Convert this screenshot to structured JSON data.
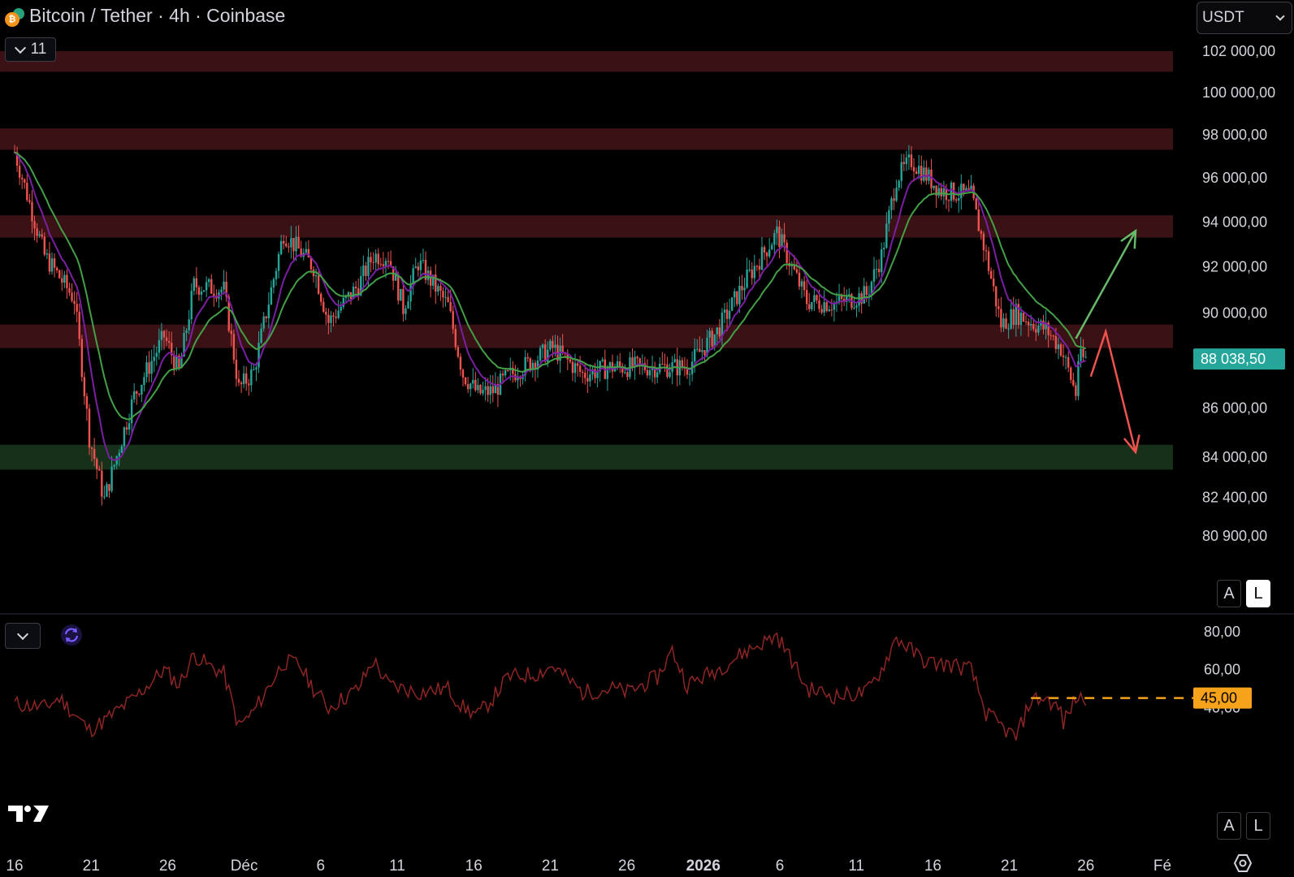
{
  "header": {
    "title": "Bitcoin / Tether · 4h · Coinbase",
    "indicator_count": "11",
    "currency": "USDT"
  },
  "price_axis": {
    "ticks": [
      "102 000,00",
      "100 000,00",
      "98 000,00",
      "96 000,00",
      "94 000,00",
      "92 000,00",
      "90 000,00",
      "86 000,00",
      "84 000,00",
      "82 400,00",
      "80 900,00"
    ],
    "current_price_label": "88 038,50",
    "current_price": 88038.5
  },
  "rsi_axis": {
    "ticks": [
      "80,00",
      "60,00",
      "40,00"
    ],
    "marker_label": "45,00",
    "marker_value": 45
  },
  "time_axis": {
    "labels": [
      "16",
      "21",
      "26",
      "Déc",
      "6",
      "11",
      "16",
      "21",
      "26",
      "2026",
      "6",
      "11",
      "16",
      "21",
      "26",
      "Fé"
    ]
  },
  "scale_buttons": {
    "auto": "A",
    "log": "L"
  },
  "colors": {
    "up": "#26a69a",
    "down": "#ef5350",
    "ema_fast": "#7b1fa2",
    "ema_slow": "#43a047",
    "resistance_zone": "#3a1216",
    "support_zone": "#17301a",
    "rsi": "#8e2525",
    "price_tag": "#26a69a",
    "rsi_tag": "#f7a21b"
  },
  "chart_data": [
    {
      "type": "candlestick",
      "title": "Bitcoin / Tether · 4h · Coinbase",
      "ylim": [
        80000,
        103000
      ],
      "x_range": [
        "2025-11-16",
        "2026-02-01"
      ],
      "price_path": [
        [
          "2025-11-16",
          97200
        ],
        [
          "2025-11-18",
          92500
        ],
        [
          "2025-11-20",
          90600
        ],
        [
          "2025-11-21",
          84800
        ],
        [
          "2025-11-22",
          82300
        ],
        [
          "2025-11-24",
          86500
        ],
        [
          "2025-11-26",
          89000
        ],
        [
          "2025-11-27",
          87500
        ],
        [
          "2025-11-28",
          91200
        ],
        [
          "2025-11-30",
          91000
        ],
        [
          "2025-12-01",
          86800
        ],
        [
          "2025-12-02",
          87500
        ],
        [
          "2025-12-04",
          93500
        ],
        [
          "2025-12-06",
          92000
        ],
        [
          "2025-12-07",
          89600
        ],
        [
          "2025-12-09",
          91200
        ],
        [
          "2025-12-10",
          92500
        ],
        [
          "2025-12-11",
          92500
        ],
        [
          "2025-12-12",
          90200
        ],
        [
          "2025-12-13",
          92200
        ],
        [
          "2025-12-15",
          90300
        ],
        [
          "2025-12-16",
          87400
        ],
        [
          "2025-12-17",
          86600
        ],
        [
          "2025-12-18",
          86700
        ],
        [
          "2025-12-19",
          87300
        ],
        [
          "2025-12-22",
          88500
        ],
        [
          "2025-12-24",
          87400
        ],
        [
          "2025-12-26",
          87700
        ],
        [
          "2025-12-29",
          87700
        ],
        [
          "2025-12-31",
          87700
        ],
        [
          "2026-01-02",
          89200
        ],
        [
          "2026-01-04",
          91500
        ],
        [
          "2026-01-06",
          93500
        ],
        [
          "2026-01-08",
          90500
        ],
        [
          "2026-01-10",
          90400
        ],
        [
          "2026-01-11",
          90600
        ],
        [
          "2026-01-12",
          90800
        ],
        [
          "2026-01-13",
          92500
        ],
        [
          "2026-01-14",
          96000
        ],
        [
          "2026-01-15",
          96800
        ],
        [
          "2026-01-17",
          95400
        ],
        [
          "2026-01-19",
          95200
        ],
        [
          "2026-01-20",
          92500
        ],
        [
          "2026-01-21",
          89500
        ],
        [
          "2026-01-22",
          90000
        ],
        [
          "2026-01-23",
          89600
        ],
        [
          "2026-01-24",
          89300
        ],
        [
          "2026-01-25",
          88500
        ],
        [
          "2026-01-26",
          86600
        ],
        [
          "2026-01-26",
          88038.5
        ]
      ],
      "resistance_zones": [
        [
          101000,
          102000
        ],
        [
          97300,
          98300
        ],
        [
          93300,
          94300
        ],
        [
          88500,
          89500
        ]
      ],
      "support_zones": [
        [
          83500,
          84500
        ]
      ],
      "moving_averages": [
        "fast",
        "slow"
      ],
      "annotations": [
        {
          "type": "arrow",
          "direction": "up",
          "from": [
            "2026-01-26",
            88900
          ],
          "to": [
            "2026-01-30",
            93600
          ]
        },
        {
          "type": "arrow",
          "direction": "down",
          "from": [
            "2026-01-27",
            87300
          ],
          "via": [
            "2026-01-28",
            89200
          ],
          "to": [
            "2026-01-30",
            84200
          ]
        }
      ]
    },
    {
      "type": "line",
      "ylim": [
        20,
        90
      ],
      "grid": false,
      "rsi_path": [
        [
          "2025-11-16",
          42
        ],
        [
          "2025-11-18",
          40
        ],
        [
          "2025-11-19",
          45
        ],
        [
          "2025-11-21",
          28
        ],
        [
          "2025-11-22",
          33
        ],
        [
          "2025-11-24",
          45
        ],
        [
          "2025-11-26",
          60
        ],
        [
          "2025-11-27",
          52
        ],
        [
          "2025-11-28",
          68
        ],
        [
          "2025-11-29",
          62
        ],
        [
          "2025-11-30",
          58
        ],
        [
          "2025-12-01",
          30
        ],
        [
          "2025-12-02",
          38
        ],
        [
          "2025-12-04",
          64
        ],
        [
          "2025-12-05",
          63
        ],
        [
          "2025-12-06",
          50
        ],
        [
          "2025-12-07",
          40
        ],
        [
          "2025-12-09",
          50
        ],
        [
          "2025-12-10",
          65
        ],
        [
          "2025-12-11",
          52
        ],
        [
          "2025-12-13",
          48
        ],
        [
          "2025-12-15",
          50
        ],
        [
          "2025-12-16",
          40
        ],
        [
          "2025-12-17",
          36
        ],
        [
          "2025-12-18",
          45
        ],
        [
          "2025-12-19",
          56
        ],
        [
          "2025-12-21",
          58
        ],
        [
          "2025-12-22",
          62
        ],
        [
          "2025-12-24",
          48
        ],
        [
          "2025-12-26",
          50
        ],
        [
          "2025-12-27",
          48
        ],
        [
          "2025-12-29",
          56
        ],
        [
          "2025-12-30",
          70
        ],
        [
          "2025-12-31",
          52
        ],
        [
          "2026-01-02",
          60
        ],
        [
          "2026-01-04",
          70
        ],
        [
          "2026-01-06",
          78
        ],
        [
          "2026-01-07",
          65
        ],
        [
          "2026-01-08",
          50
        ],
        [
          "2026-01-10",
          46
        ],
        [
          "2026-01-12",
          48
        ],
        [
          "2026-01-13",
          60
        ],
        [
          "2026-01-14",
          77
        ],
        [
          "2026-01-15",
          70
        ],
        [
          "2026-01-16",
          64
        ],
        [
          "2026-01-18",
          62
        ],
        [
          "2026-01-19",
          60
        ],
        [
          "2026-01-20",
          37
        ],
        [
          "2026-01-21",
          30
        ],
        [
          "2026-01-22",
          24
        ],
        [
          "2026-01-23",
          44
        ],
        [
          "2026-01-24",
          45
        ],
        [
          "2026-01-25",
          38
        ],
        [
          "2026-01-25",
          29
        ],
        [
          "2026-01-26",
          45
        ]
      ],
      "reference_lines": [
        45
      ]
    }
  ]
}
